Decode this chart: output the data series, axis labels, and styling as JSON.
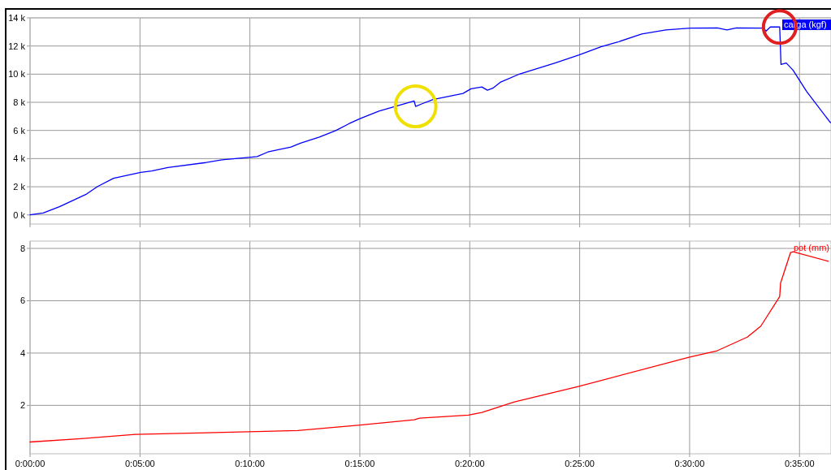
{
  "chart_data": [
    {
      "type": "line",
      "tick_labels": "y",
      "grid": true,
      "legend": "top right",
      "xlim": [
        0,
        0.6072
      ],
      "ylim": [
        -650,
        14000
      ],
      "xticks": [
        {
          "value": 0,
          "label": null
        },
        {
          "value": 0.083333,
          "label": null
        },
        {
          "value": 0.166667,
          "label": null
        },
        {
          "value": 0.25,
          "label": null
        },
        {
          "value": 0.333333,
          "label": null
        },
        {
          "value": 0.416667,
          "label": null
        },
        {
          "value": 0.5,
          "label": null
        },
        {
          "value": 0.583333,
          "label": null
        }
      ],
      "yticks": [
        {
          "value": 0,
          "label": "0 k"
        },
        {
          "value": 2000,
          "label": "2 k"
        },
        {
          "value": 4000,
          "label": "4 k"
        },
        {
          "value": 6000,
          "label": "6 k"
        },
        {
          "value": 8000,
          "label": "8 k"
        },
        {
          "value": 10000,
          "label": "10 k"
        },
        {
          "value": 12000,
          "label": "12 k"
        },
        {
          "value": 14000,
          "label": "14 k"
        }
      ],
      "series": [
        {
          "name": "carga (kgf)",
          "color": "#0000ff",
          "x": [
            0,
            0.01,
            0.0223,
            0.0428,
            0.0512,
            0.0633,
            0.0838,
            0.0922,
            0.1045,
            0.1333,
            0.1455,
            0.166,
            0.1722,
            0.1803,
            0.1978,
            0.205,
            0.2193,
            0.2317,
            0.242,
            0.2502,
            0.2645,
            0.2768,
            0.2912,
            0.2923,
            0.2973,
            0.3055,
            0.3282,
            0.3343,
            0.3425,
            0.3467,
            0.3508,
            0.3568,
            0.3713,
            0.398,
            0.4163,
            0.4328,
            0.4452,
            0.4637,
            0.482,
            0.5005,
            0.521,
            0.5283,
            0.5355,
            0.556,
            0.558,
            0.5612,
            0.5683,
            0.5693,
            0.5733,
            0.5785,
            0.5887,
            0.6068
          ],
          "values": [
            0,
            130,
            580,
            1480,
            2020,
            2600,
            3020,
            3120,
            3370,
            3720,
            3910,
            4090,
            4140,
            4470,
            4820,
            5100,
            5530,
            5990,
            6490,
            6840,
            7380,
            7710,
            8090,
            7710,
            7900,
            8190,
            8630,
            8960,
            9090,
            8860,
            9000,
            9440,
            10020,
            10790,
            11370,
            11950,
            12270,
            12850,
            13140,
            13270,
            13290,
            13140,
            13280,
            13270,
            13060,
            13350,
            13350,
            10690,
            10790,
            10270,
            8770,
            6550
          ]
        }
      ]
    },
    {
      "type": "line",
      "grid": true,
      "legend": "top right",
      "xlim": [
        0,
        0.6072
      ],
      "ylim": [
        0.15,
        8.28
      ],
      "xticks": [
        {
          "value": 0,
          "label": "0:00:00"
        },
        {
          "value": 0.083333,
          "label": "0:05:00"
        },
        {
          "value": 0.166667,
          "label": "0:10:00"
        },
        {
          "value": 0.25,
          "label": "0:15:00"
        },
        {
          "value": 0.333333,
          "label": "0:20:00"
        },
        {
          "value": 0.416667,
          "label": "0:25:00"
        },
        {
          "value": 0.5,
          "label": "0:30:00"
        },
        {
          "value": 0.583333,
          "label": "0:35:00"
        }
      ],
      "yticks": [
        2,
        4,
        6,
        8
      ],
      "series": [
        {
          "name": "pot (mm)",
          "color": "#ff0000",
          "x": [
            0,
            0.0388,
            0.0798,
            0.1208,
            0.166,
            0.203,
            0.2502,
            0.2912,
            0.2953,
            0.3323,
            0.3425,
            0.3672,
            0.4163,
            0.4995,
            0.521,
            0.5438,
            0.554,
            0.5683,
            0.569,
            0.5765,
            0.5785,
            0.6052
          ],
          "values": [
            0.6,
            0.73,
            0.89,
            0.94,
            0.99,
            1.04,
            1.25,
            1.45,
            1.51,
            1.63,
            1.73,
            2.13,
            2.73,
            3.84,
            4.09,
            4.61,
            5.03,
            6.16,
            6.68,
            7.84,
            7.87,
            7.51
          ]
        }
      ]
    }
  ]
}
